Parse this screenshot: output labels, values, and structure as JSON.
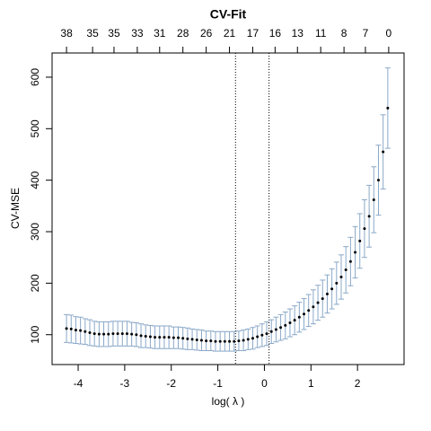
{
  "chart_data": {
    "type": "errorbar",
    "title": "CV-Fit",
    "xlabel": "log( λ )",
    "ylabel": "CV-MSE",
    "x": [
      -4.25,
      -4.15,
      -4.05,
      -3.95,
      -3.85,
      -3.75,
      -3.65,
      -3.55,
      -3.45,
      -3.35,
      -3.25,
      -3.15,
      -3.05,
      -2.95,
      -2.85,
      -2.75,
      -2.65,
      -2.55,
      -2.45,
      -2.35,
      -2.25,
      -2.15,
      -2.05,
      -1.95,
      -1.85,
      -1.75,
      -1.65,
      -1.55,
      -1.45,
      -1.35,
      -1.25,
      -1.15,
      -1.05,
      -0.95,
      -0.85,
      -0.75,
      -0.65,
      -0.55,
      -0.45,
      -0.35,
      -0.25,
      -0.15,
      -0.05,
      0.05,
      0.15,
      0.25,
      0.35,
      0.45,
      0.55,
      0.65,
      0.75,
      0.85,
      0.95,
      1.05,
      1.15,
      1.25,
      1.35,
      1.45,
      1.55,
      1.65,
      1.75,
      1.85,
      1.95,
      2.05,
      2.15,
      2.25,
      2.35,
      2.45,
      2.55,
      2.65
    ],
    "values": [
      112,
      111,
      109,
      108,
      106,
      104,
      102,
      101,
      101,
      101,
      102,
      102,
      102,
      102,
      101,
      100,
      98,
      97,
      96,
      95,
      95,
      95,
      95,
      94,
      94,
      93,
      92,
      91,
      90,
      89,
      88,
      88,
      87,
      87,
      87,
      87,
      87,
      88,
      89,
      91,
      93,
      96,
      99,
      102,
      106,
      110,
      114,
      118,
      123,
      128,
      134,
      140,
      147,
      154,
      162,
      170,
      179,
      189,
      200,
      212,
      226,
      242,
      260,
      282,
      306,
      330,
      362,
      400,
      455,
      540
    ],
    "errors": [
      27,
      27,
      26,
      26,
      25,
      25,
      24,
      24,
      24,
      24,
      24,
      24,
      24,
      24,
      23,
      23,
      23,
      22,
      22,
      22,
      22,
      22,
      22,
      21,
      21,
      21,
      21,
      20,
      20,
      20,
      19,
      19,
      19,
      19,
      19,
      19,
      19,
      19,
      20,
      20,
      21,
      21,
      22,
      23,
      23,
      24,
      25,
      26,
      27,
      28,
      29,
      30,
      31,
      33,
      34,
      36,
      37,
      39,
      41,
      43,
      45,
      47,
      50,
      53,
      56,
      60,
      64,
      68,
      72,
      78
    ],
    "point_color": "#000000",
    "bar_color": "#8aa8c8",
    "xlim": [
      -4.56,
      3.0
    ],
    "ylim": [
      42,
      647
    ],
    "xticks": [
      -4,
      -3,
      -2,
      -1,
      0,
      1,
      2
    ],
    "yticks": [
      100,
      200,
      300,
      400,
      500,
      600
    ],
    "x2ticks": [
      {
        "value": -4.25,
        "label": "38"
      },
      {
        "value": -3.69,
        "label": "35"
      },
      {
        "value": -3.23,
        "label": "35"
      },
      {
        "value": -2.73,
        "label": "33"
      },
      {
        "value": -2.25,
        "label": "31"
      },
      {
        "value": -1.75,
        "label": "28"
      },
      {
        "value": -1.25,
        "label": "26"
      },
      {
        "value": -0.75,
        "label": "21"
      },
      {
        "value": -0.25,
        "label": "17"
      },
      {
        "value": 0.23,
        "label": "16"
      },
      {
        "value": 0.71,
        "label": "13"
      },
      {
        "value": 1.21,
        "label": "11"
      },
      {
        "value": 1.71,
        "label": "8"
      },
      {
        "value": 2.17,
        "label": "7"
      },
      {
        "value": 2.67,
        "label": "0"
      }
    ],
    "vlines": [
      -0.62,
      0.1
    ]
  }
}
